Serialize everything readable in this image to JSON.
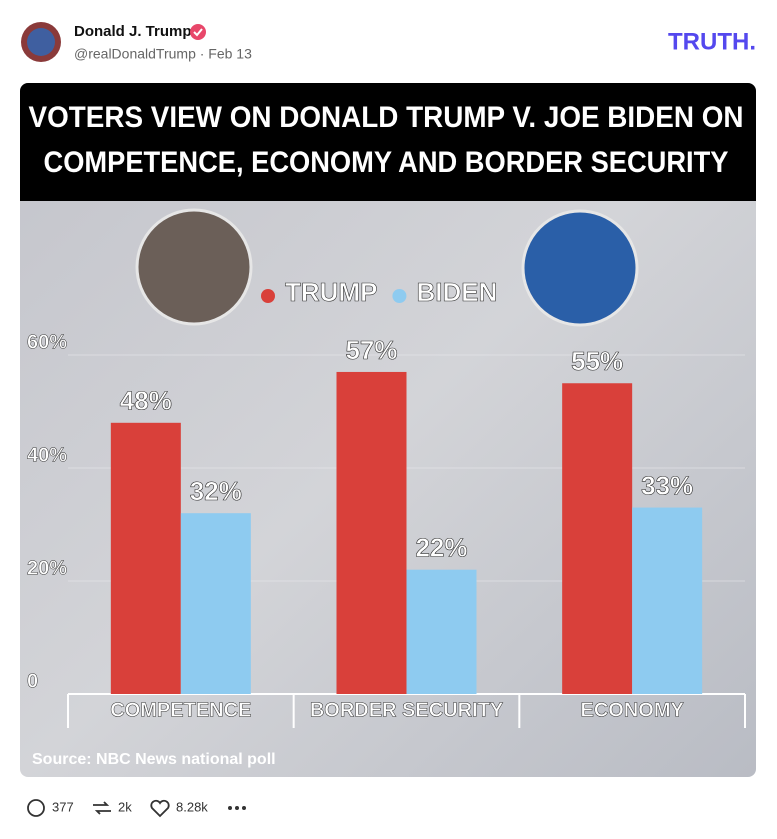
{
  "post": {
    "author": "Donald J. Trump",
    "handle_date": "@realDonaldTrump · Feb 13",
    "logo": "TRUTH.",
    "replies": "377",
    "reposts": "2k",
    "likes": "8.28k"
  },
  "chart_data": {
    "type": "bar",
    "title": [
      "VOTERS VIEW ON DONALD TRUMP V. JOE BIDEN ON",
      "COMPETENCE, ECONOMY AND BORDER SECURITY"
    ],
    "categories": [
      "COMPETENCE",
      "BORDER SECURITY",
      "ECONOMY"
    ],
    "series": [
      {
        "name": "TRUMP",
        "color": "#d9403a",
        "values": [
          48,
          57,
          55
        ],
        "value_labels": [
          "48%",
          "57%",
          "55%"
        ]
      },
      {
        "name": "BIDEN",
        "color": "#8ecbf0",
        "values": [
          32,
          22,
          33
        ],
        "value_labels": [
          "32%",
          "22%",
          "33%"
        ]
      }
    ],
    "ylim": [
      0,
      60
    ],
    "yticks": [
      0,
      {
        "value": 20,
        "label": "20%"
      },
      {
        "value": 40,
        "label": "40%"
      },
      {
        "value": 60,
        "label": "60%"
      }
    ],
    "source": "Source: NBC News national poll"
  }
}
